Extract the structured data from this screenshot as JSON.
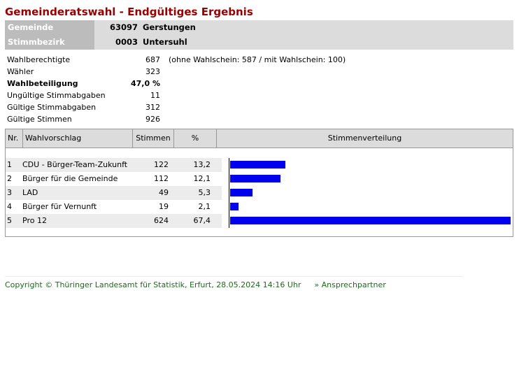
{
  "title": "Gemeinderatswahl - Endgültiges Ergebnis",
  "info": [
    {
      "label": "Gemeinde",
      "number": "63097",
      "name": "Gerstungen"
    },
    {
      "label": "Stimmbezirk",
      "number": "0003",
      "name": "Untersuhl"
    }
  ],
  "stats": [
    {
      "label": "Wahlberechtigte",
      "value": "687",
      "note": "(ohne Wahlschein: 587 / mit Wahlschein: 100)"
    },
    {
      "label": "Wähler",
      "value": "323",
      "note": ""
    },
    {
      "label": "Wahlbeteiligung",
      "value": "47,0 %",
      "note": ""
    },
    {
      "label": "Ungültige Stimmabgaben",
      "value": "11",
      "note": ""
    },
    {
      "label": "Gültige Stimmabgaben",
      "value": "312",
      "note": ""
    },
    {
      "label": "Gültige Stimmen",
      "value": "926",
      "note": ""
    }
  ],
  "table": {
    "headers": {
      "nr": "Nr.",
      "name": "Wahlvorschlag",
      "votes": "Stimmen",
      "pct": "%",
      "dist": "Stimmenverteilung"
    },
    "rows": [
      {
        "nr": "1",
        "name": "CDU - Bürger-Team-Zukunft",
        "votes": "122",
        "pct": "13,2"
      },
      {
        "nr": "2",
        "name": "Bürger für die Gemeinde",
        "votes": "112",
        "pct": "12,1"
      },
      {
        "nr": "3",
        "name": "LAD",
        "votes": "49",
        "pct": "5,3"
      },
      {
        "nr": "4",
        "name": "Bürger für Vernunft",
        "votes": "19",
        "pct": "2,1"
      },
      {
        "nr": "5",
        "name": "Pro 12",
        "votes": "624",
        "pct": "67,4"
      }
    ]
  },
  "chart_data": {
    "type": "bar",
    "categories": [
      "CDU - Bürger-Team-Zukunft",
      "Bürger für die Gemeinde",
      "LAD",
      "Bürger für Vernunft",
      "Pro 12"
    ],
    "values": [
      13.2,
      12.1,
      5.3,
      2.1,
      67.4
    ],
    "title": "Stimmenverteilung",
    "xlabel": "",
    "ylabel": "",
    "bar_color": "#0000ee"
  },
  "colors": {
    "title": "#990000",
    "bar": "#0000ee",
    "footer": "#1e6a1e"
  },
  "footer": {
    "copyright": "Copyright © Thüringer Landesamt für Statistik, Erfurt, 28.05.2024 14:16 Uhr",
    "link": "» Ansprechpartner"
  }
}
